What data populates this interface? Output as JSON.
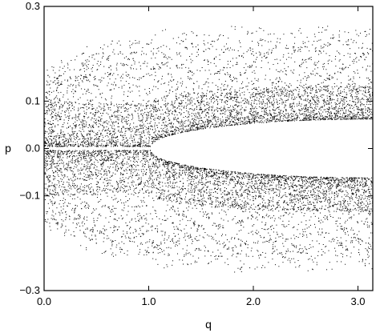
{
  "chart_data": {
    "type": "scatter",
    "title": "",
    "xlabel": "q",
    "ylabel": "p",
    "xlim": [
      0.0,
      3.14159
    ],
    "ylim": [
      -0.3,
      0.3
    ],
    "grid": false,
    "legend": "none",
    "xticks": [
      0.0,
      1.0,
      2.0,
      3.0
    ],
    "xtick_labels": [
      "0.0",
      "1.0",
      "2.0",
      "3.0"
    ],
    "yticks": [
      -0.3,
      -0.1,
      0.0,
      0.1,
      0.3
    ],
    "ytick_labels": [
      "−0.3",
      "−0.1",
      "0.0",
      "0.1",
      "0.3"
    ],
    "series": [
      {
        "marker_color": "#000000",
        "description_points": "Poincaré-section point cloud: elliptical empty region centered near (3.14, 0) with half-width ≈2.1 in q and ≈0.06 in p; dense chaotic band at |p|≈0.08–0.13; resonance-island chains at |p|≈0.15–0.25",
        "points": [
          [
            0.02,
            0.0
          ],
          [
            0.05,
            0.08
          ],
          [
            0.05,
            -0.08
          ],
          [
            0.1,
            0.15
          ],
          [
            0.1,
            -0.15
          ],
          [
            0.3,
            0.12
          ],
          [
            0.3,
            -0.12
          ],
          [
            0.5,
            0.2
          ],
          [
            0.5,
            -0.2
          ],
          [
            0.8,
            0.11
          ],
          [
            0.8,
            -0.11
          ],
          [
            1.0,
            0.22
          ],
          [
            1.0,
            -0.22
          ],
          [
            1.5,
            0.1
          ],
          [
            1.5,
            -0.1
          ],
          [
            2.0,
            0.11
          ],
          [
            2.0,
            -0.11
          ],
          [
            2.5,
            0.12
          ],
          [
            2.5,
            -0.12
          ],
          [
            3.0,
            0.12
          ],
          [
            3.0,
            -0.12
          ],
          [
            3.1,
            0.2
          ],
          [
            3.1,
            -0.2
          ],
          [
            1.2,
            0.06
          ],
          [
            1.2,
            -0.06
          ]
        ]
      }
    ]
  }
}
